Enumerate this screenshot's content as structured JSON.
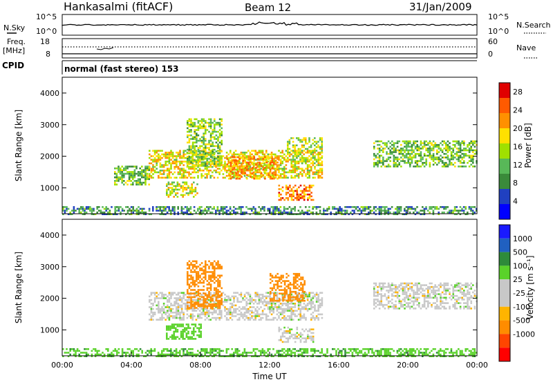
{
  "header": {
    "station": "Hankasalmi (fitACF)",
    "beam": "Beam 12",
    "date": "31/Jan/2009"
  },
  "summary_panels": {
    "nsky": {
      "label": "N.Sky",
      "ticks": [
        "10^5",
        "10^0"
      ],
      "right_label": "N.Search",
      "right_ticks": [
        "10^5",
        "10^0"
      ]
    },
    "freq": {
      "label_line1": "Freq.",
      "label_line2": "[MHz]",
      "ticks": [
        "18",
        "8"
      ],
      "right_label": "Nave",
      "right_ticks": [
        "60",
        "0"
      ]
    },
    "cpid": {
      "label": "CPID",
      "mode": "normal (fast stereo) 153"
    }
  },
  "colors": {
    "power_scale": [
      "#0000ff",
      "#2040c0",
      "#3a8a3a",
      "#58b858",
      "#a0e000",
      "#ffe000",
      "#ff9000",
      "#ff5a00",
      "#e00000"
    ],
    "velocity_scale": [
      "#ff0000",
      "#ff4500",
      "#ff8c00",
      "#ffb400",
      "#c8c8c8",
      "#c8c8c8",
      "#5ad22a",
      "#2e8b3a",
      "#2060c0",
      "#1a1aff"
    ]
  },
  "chart_data": [
    {
      "type": "heatmap",
      "parameter": "Power",
      "ylabel": "Slant Range [km]",
      "yticks": [
        "4000",
        "3000",
        "2000",
        "1000"
      ],
      "ylim": [
        180,
        4500
      ],
      "xlim": [
        0,
        24
      ],
      "colorbar": {
        "label": "Power [dB]",
        "ticks": [
          "28",
          "24",
          "20",
          "16",
          "12",
          "8",
          "4"
        ],
        "range": [
          0,
          30
        ]
      },
      "echo_regions": [
        {
          "t0": 0.0,
          "t1": 24.0,
          "r0": 180,
          "r1": 420,
          "level": 8
        },
        {
          "t0": 3.0,
          "t1": 5.0,
          "r0": 1100,
          "r1": 1700,
          "level": 12
        },
        {
          "t0": 5.0,
          "t1": 15.0,
          "r0": 1300,
          "r1": 2200,
          "level": 18
        },
        {
          "t0": 6.0,
          "t1": 7.8,
          "r0": 700,
          "r1": 1200,
          "level": 16
        },
        {
          "t0": 7.2,
          "t1": 9.2,
          "r0": 1700,
          "r1": 3200,
          "level": 14
        },
        {
          "t0": 9.5,
          "t1": 12.5,
          "r0": 1300,
          "r1": 2000,
          "level": 22
        },
        {
          "t0": 12.5,
          "t1": 14.5,
          "r0": 600,
          "r1": 1100,
          "level": 24
        },
        {
          "t0": 13.0,
          "t1": 15.0,
          "r0": 1800,
          "r1": 2600,
          "level": 16
        },
        {
          "t0": 18.0,
          "t1": 24.0,
          "r0": 1700,
          "r1": 2500,
          "level": 12
        }
      ]
    },
    {
      "type": "heatmap",
      "parameter": "Velocity",
      "ylabel": "Slant Range [km]",
      "yticks": [
        "4000",
        "3000",
        "2000",
        "1000"
      ],
      "xlabel": "Time UT",
      "xticks": [
        "00:00",
        "04:00",
        "08:00",
        "12:00",
        "16:00",
        "20:00",
        "00:00"
      ],
      "ylim": [
        180,
        4500
      ],
      "xlim": [
        0,
        24
      ],
      "colorbar": {
        "label": "Velocity [m s⁻¹]",
        "ticks": [
          "1000",
          "500",
          "100",
          "25",
          "-25",
          "-100",
          "-500",
          "-1000"
        ]
      },
      "echo_regions": [
        {
          "t0": 0.0,
          "t1": 24.0,
          "r0": 180,
          "r1": 420,
          "velocity": 80
        },
        {
          "t0": 5.0,
          "t1": 15.0,
          "r0": 1300,
          "r1": 2200,
          "velocity": 0
        },
        {
          "t0": 6.0,
          "t1": 8.0,
          "r0": 700,
          "r1": 1200,
          "velocity": 60
        },
        {
          "t0": 7.2,
          "t1": 9.2,
          "r0": 1700,
          "r1": 3200,
          "velocity": -150
        },
        {
          "t0": 12.0,
          "t1": 14.0,
          "r0": 1900,
          "r1": 2800,
          "velocity": -200
        },
        {
          "t0": 12.5,
          "t1": 14.5,
          "r0": 600,
          "r1": 1100,
          "velocity": 0
        },
        {
          "t0": 18.0,
          "t1": 24.0,
          "r0": 1700,
          "r1": 2500,
          "velocity": 0
        }
      ]
    }
  ]
}
